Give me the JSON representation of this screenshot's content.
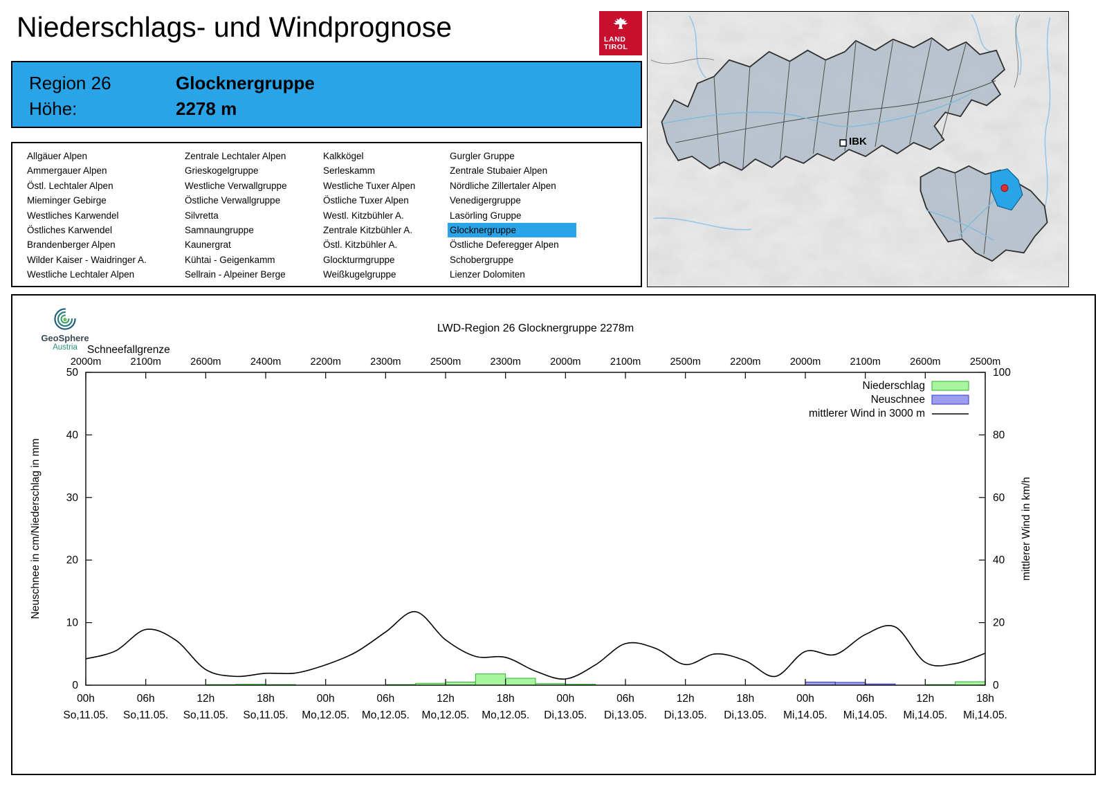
{
  "header": {
    "title": "Niederschlags- und Windprognose",
    "logo": {
      "line1": "LAND",
      "line2": "TIROL"
    }
  },
  "region_info": {
    "region_label": "Region 26",
    "region_name": "Glocknergruppe",
    "altitude_label": "Höhe:",
    "altitude_value": "2278 m"
  },
  "region_list": {
    "selected": "Glocknergruppe",
    "selected_color": "#29A4E9",
    "columns": [
      [
        "Allgäuer Alpen",
        "Ammergauer Alpen",
        "Östl. Lechtaler Alpen",
        "Mieminger Gebirge",
        "Westliches Karwendel",
        "Östliches Karwendel",
        "Brandenberger Alpen",
        "Wilder Kaiser - Waidringer A.",
        "Westliche Lechtaler Alpen"
      ],
      [
        "Zentrale Lechtaler Alpen",
        "Grieskogelgruppe",
        "Westliche Verwallgruppe",
        "Östliche Verwallgruppe",
        "Silvretta",
        "Samnaungruppe",
        "Kaunergrat",
        "Kühtai - Geigenkamm",
        "Sellrain - Alpeiner Berge"
      ],
      [
        "Kalkkögel",
        "Serleskamm",
        "Westliche Tuxer Alpen",
        "Östliche Tuxer Alpen",
        "Westl. Kitzbühler A.",
        "Zentrale Kitzbühler A.",
        "Östl. Kitzbühler A.",
        "Glockturmgruppe",
        "Weißkugelgruppe"
      ],
      [
        "Gurgler Gruppe",
        "Zentrale Stubaier Alpen",
        "Nördliche Zillertaler Alpen",
        "Venedigergruppe",
        "Lasörling Gruppe",
        "Glocknergruppe",
        "Östliche Deferegger Alpen",
        "Schobergruppe",
        "Lienzer Dolomiten"
      ]
    ]
  },
  "map": {
    "marker_label": "IBK",
    "highlight_region": "Glocknergruppe",
    "highlight_color": "#29A4E9",
    "marker_dot_color": "#E03030"
  },
  "geosphere": {
    "name": "GeoSphere",
    "country": "Austria"
  },
  "chart_data": {
    "type": "bar+line",
    "title": "LWD-Region 26 Glocknergruppe 2278m",
    "snowline_label": "Schneefallgrenze",
    "snowline_values": [
      "2000m",
      "2100m",
      "2600m",
      "2400m",
      "2200m",
      "2300m",
      "2500m",
      "2300m",
      "2000m",
      "2100m",
      "2500m",
      "2200m",
      "2000m",
      "2100m",
      "2600m",
      "2500m"
    ],
    "ylabel_left": "Neuschnee in cm/Niederschlag in mm",
    "ylabel_right": "mittlerer Wind in km/h",
    "ylim_left": [
      0,
      50
    ],
    "ylim_right": [
      0,
      100
    ],
    "yticks_left": [
      0,
      10,
      20,
      30,
      40,
      50
    ],
    "yticks_right": [
      0,
      20,
      40,
      60,
      80,
      100
    ],
    "x_total_hours": 90,
    "xticks": [
      {
        "hour": 0,
        "hour_label": "00h",
        "date_label": "So,11.05."
      },
      {
        "hour": 6,
        "hour_label": "06h",
        "date_label": "So,11.05."
      },
      {
        "hour": 12,
        "hour_label": "12h",
        "date_label": "So,11.05."
      },
      {
        "hour": 18,
        "hour_label": "18h",
        "date_label": "So,11.05."
      },
      {
        "hour": 24,
        "hour_label": "00h",
        "date_label": "Mo,12.05."
      },
      {
        "hour": 30,
        "hour_label": "06h",
        "date_label": "Mo,12.05."
      },
      {
        "hour": 36,
        "hour_label": "12h",
        "date_label": "Mo,12.05."
      },
      {
        "hour": 42,
        "hour_label": "18h",
        "date_label": "Mo,12.05."
      },
      {
        "hour": 48,
        "hour_label": "00h",
        "date_label": "Di,13.05."
      },
      {
        "hour": 54,
        "hour_label": "06h",
        "date_label": "Di,13.05."
      },
      {
        "hour": 60,
        "hour_label": "12h",
        "date_label": "Di,13.05."
      },
      {
        "hour": 66,
        "hour_label": "18h",
        "date_label": "Di,13.05."
      },
      {
        "hour": 72,
        "hour_label": "00h",
        "date_label": "Mi,14.05."
      },
      {
        "hour": 78,
        "hour_label": "06h",
        "date_label": "Mi,14.05."
      },
      {
        "hour": 84,
        "hour_label": "12h",
        "date_label": "Mi,14.05."
      },
      {
        "hour": 90,
        "hour_label": "18h",
        "date_label": "Mi,14.05."
      }
    ],
    "legend": [
      {
        "label": "Niederschlag",
        "type": "bar",
        "fill": "#A8F5A0",
        "stroke": "#2FAF2F"
      },
      {
        "label": "Neuschnee",
        "type": "bar",
        "fill": "#9D9DF0",
        "stroke": "#3333CC"
      },
      {
        "label": "mittlerer Wind in 3000 m",
        "type": "line",
        "stroke": "#000000"
      }
    ],
    "series": {
      "niederschlag": {
        "unit": "mm per 3h",
        "start_hour": 0,
        "step_hours": 3,
        "values": [
          0,
          0,
          0,
          0,
          0.1,
          0.15,
          0.1,
          0,
          0,
          0,
          0.1,
          0.3,
          0.5,
          1.8,
          1.1,
          0.25,
          0.15,
          0,
          0,
          0,
          0,
          0,
          0,
          0,
          0.3,
          0.25,
          0.1,
          0,
          0.1,
          0.55
        ]
      },
      "neuschnee": {
        "unit": "cm per 3h",
        "start_hour": 0,
        "step_hours": 3,
        "values": [
          0,
          0,
          0,
          0,
          0,
          0,
          0,
          0,
          0,
          0,
          0,
          0,
          0,
          0,
          0,
          0,
          0,
          0,
          0,
          0,
          0,
          0,
          0,
          0,
          0.5,
          0.45,
          0.2,
          0,
          0,
          0
        ]
      },
      "wind": {
        "unit": "km/h",
        "start_hour": 0,
        "step_hours": 3,
        "values": [
          8.4,
          11.0,
          17.8,
          14.4,
          5.0,
          2.8,
          3.8,
          3.9,
          6.5,
          10.5,
          17.0,
          23.5,
          14.5,
          9.2,
          8.9,
          4.5,
          2.0,
          6.5,
          13.3,
          11.8,
          6.6,
          10.0,
          7.8,
          2.8,
          10.8,
          9.8,
          16.2,
          18.6,
          7.3,
          6.9,
          10.2
        ]
      }
    }
  }
}
